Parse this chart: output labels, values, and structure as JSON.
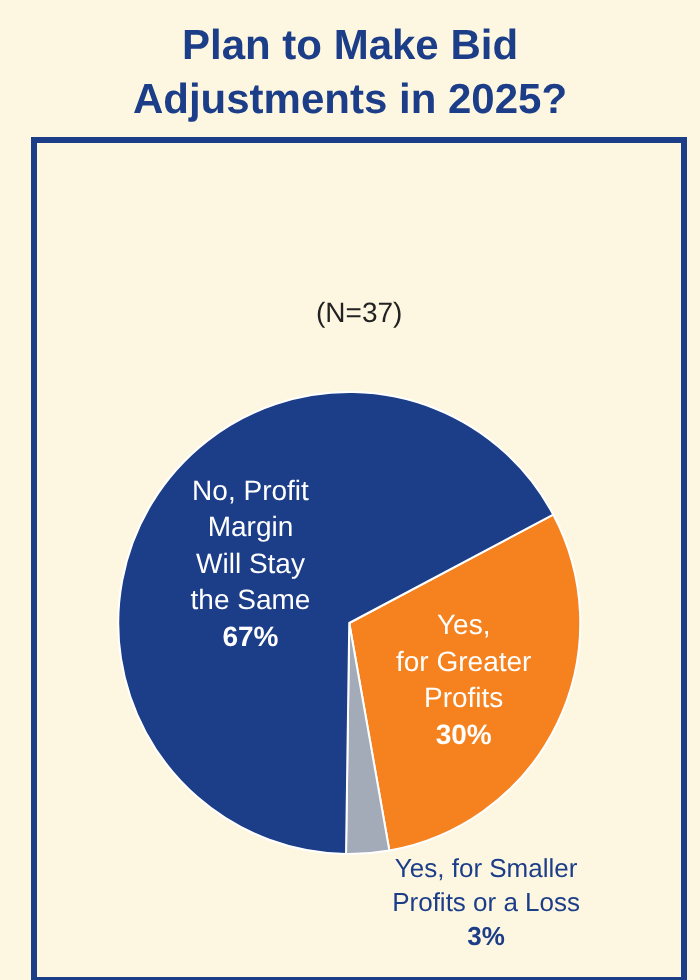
{
  "chart_data": {
    "type": "pie",
    "title": "Plan to Make Bid\nAdjustments in 2025?",
    "subtitle": "(N=37)",
    "categories": [
      "Yes,\nfor Greater\nProfits",
      "Yes, for Smaller\nProfits or a Loss",
      "No, Profit\nMargin\nWill Stay\nthe Same"
    ],
    "values": [
      30,
      3,
      67
    ],
    "colors": [
      "#f5821f",
      "#a3aab8",
      "#1c3d87"
    ],
    "value_labels": [
      "30%",
      "3%",
      "67%"
    ],
    "legend": false
  }
}
